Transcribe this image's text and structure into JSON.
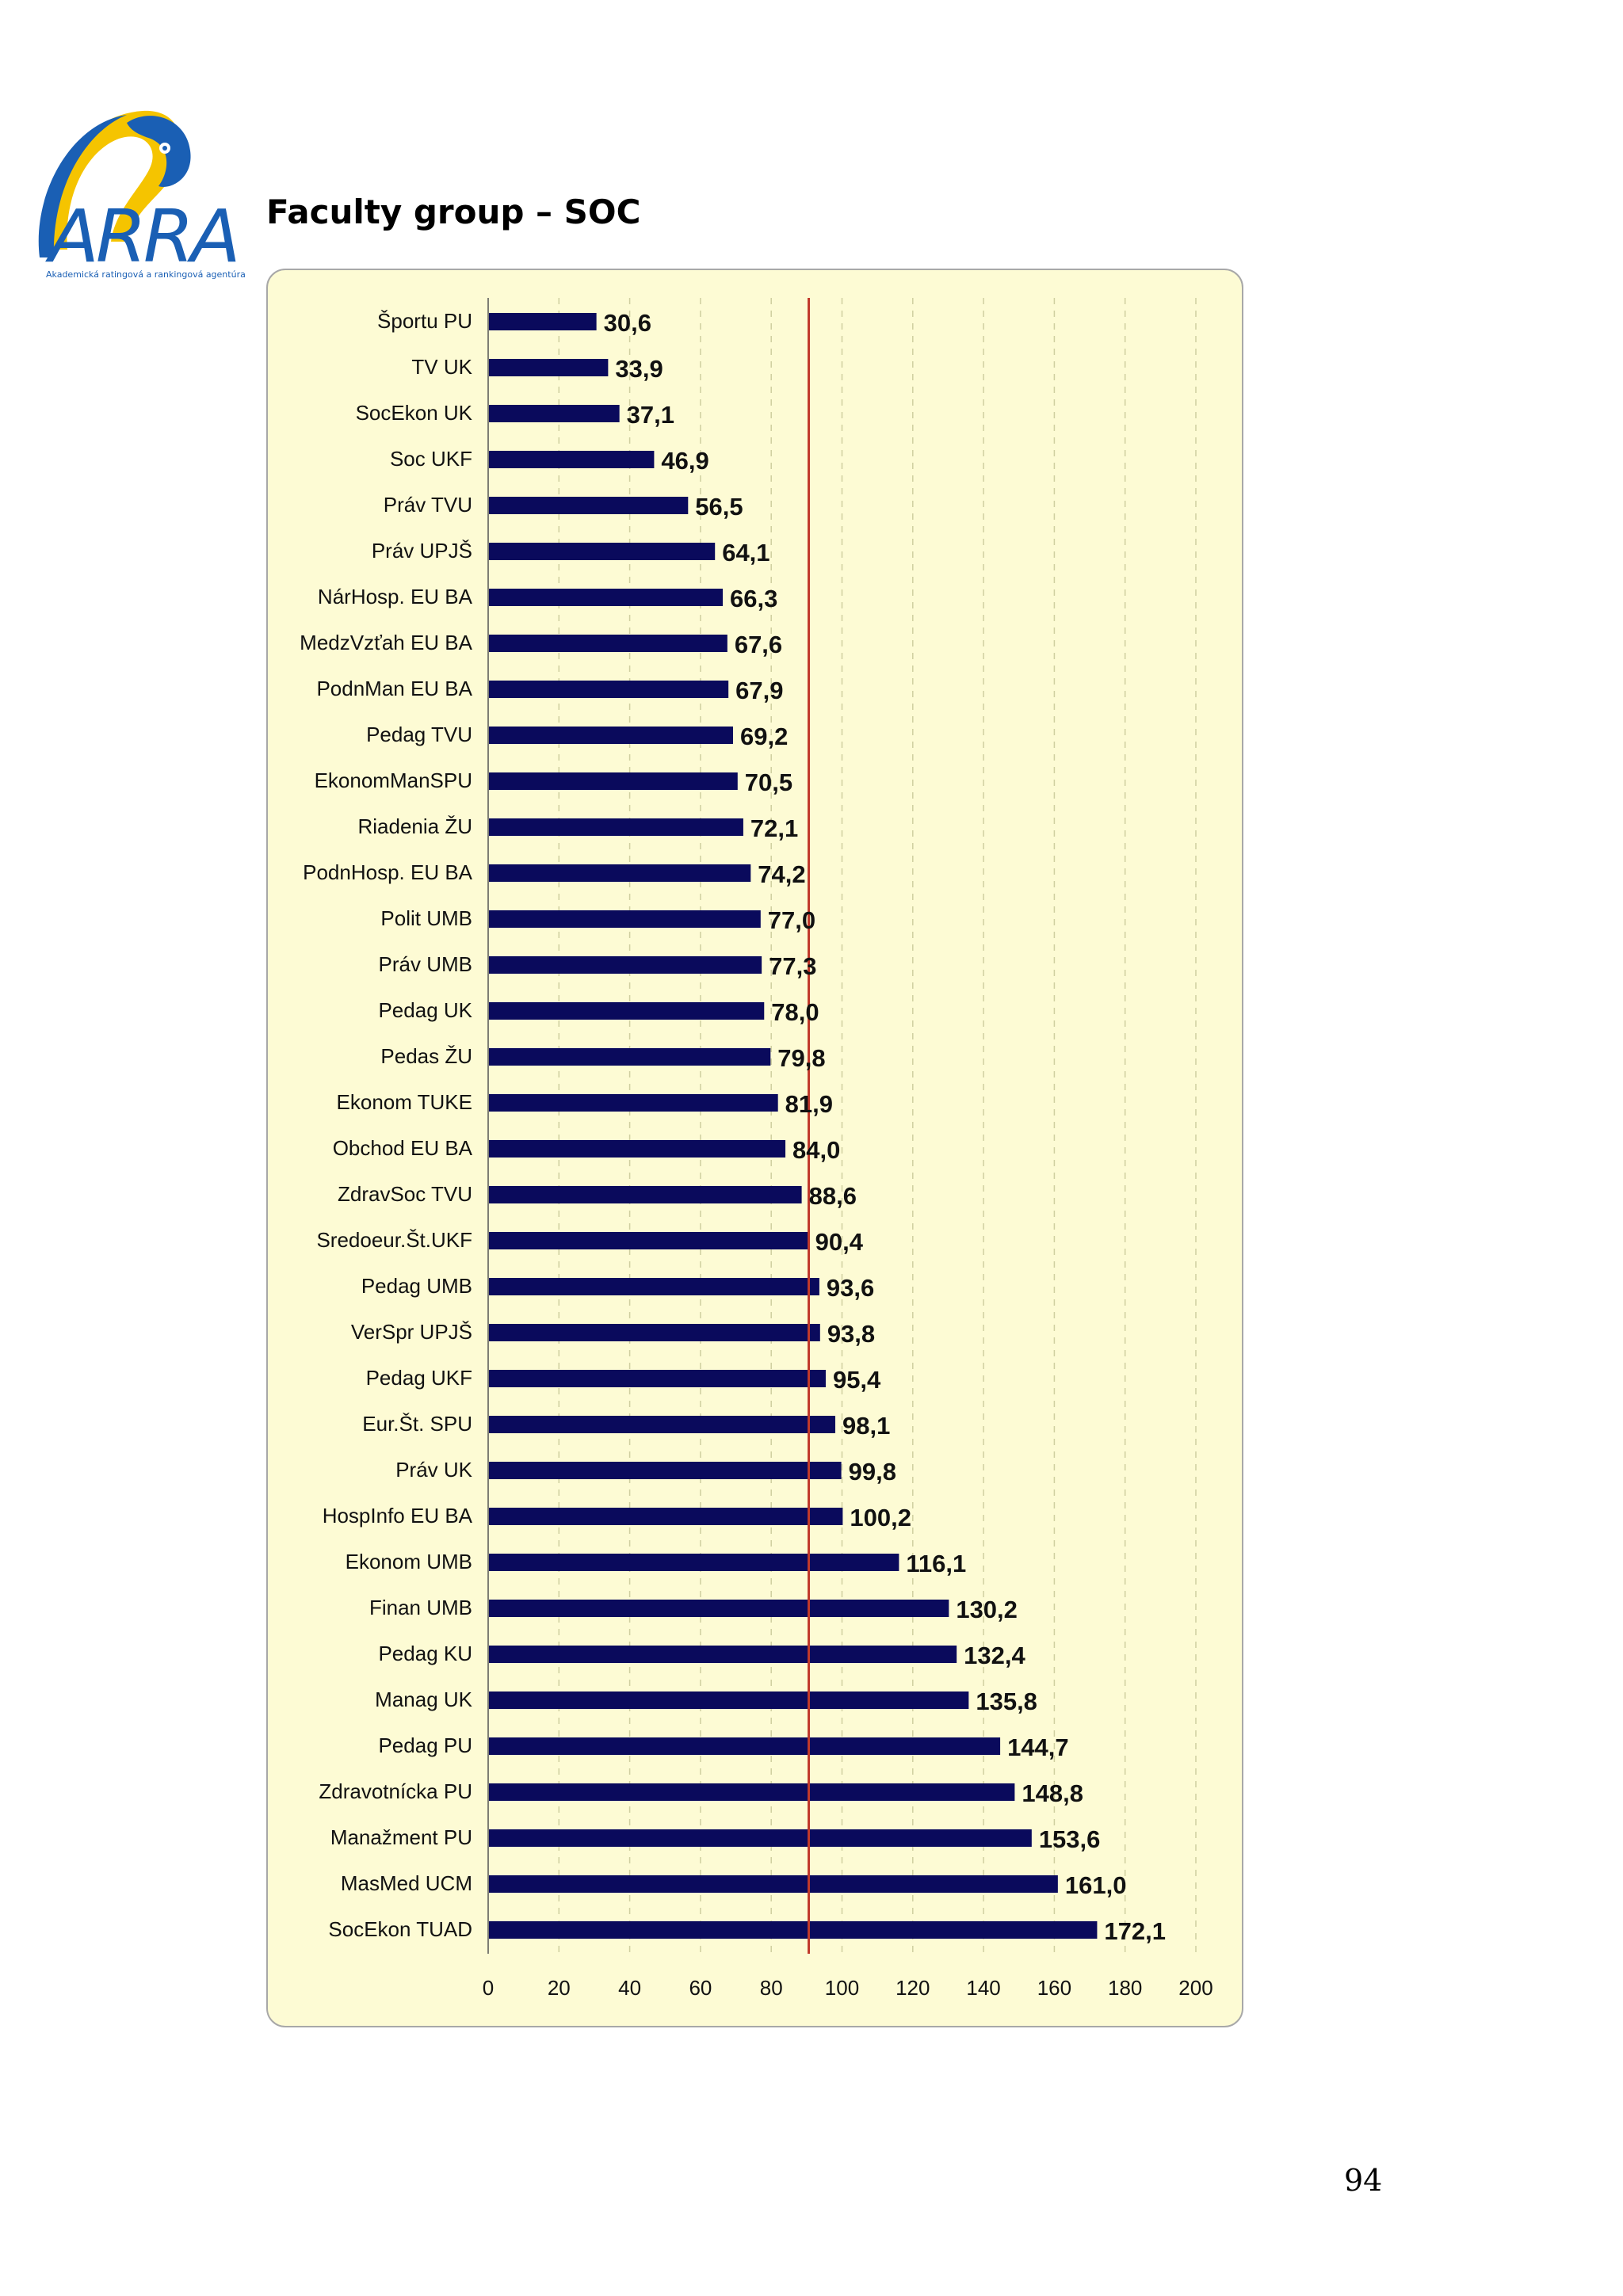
{
  "header": {
    "heading": "Faculty group – SOC",
    "logo_text": "ARRA",
    "logo_caption": "Akademická ratingová a rankingová agentúra",
    "logo_icon": "parrot-icon"
  },
  "colors": {
    "bar": "#0a0a5c",
    "reference_line": "#c0392b",
    "chart_background": "#fdfbd4",
    "logo_blue": "#1a5fb4",
    "logo_yellow": "#f5c400"
  },
  "chart_data": {
    "type": "bar",
    "orientation": "horizontal",
    "categories": [
      "Športu PU",
      "TV  UK",
      "SocEkon UK",
      "Soc UKF",
      "Práv TVU",
      "Práv UPJŠ",
      "NárHosp. EU BA",
      "MedzVzťah EU BA",
      "PodnMan EU BA",
      "Pedag TVU",
      "EkonomManSPU",
      "Riadenia  ŽU",
      "PodnHosp. EU BA",
      "Polit UMB",
      "Práv UMB",
      "Pedag UK",
      "Pedas ŽU",
      "Ekonom TUKE",
      "Obchod EU BA",
      "ZdravSoc TVU",
      "Sredoeur.Št.UKF",
      "Pedag UMB",
      "VerSpr UPJŠ",
      "Pedag UKF",
      "Eur.Št. SPU",
      "Práv UK",
      "HospInfo EU BA",
      "Ekonom UMB",
      "Finan UMB",
      "Pedag KU",
      "Manag UK",
      "Pedag PU",
      "Zdravotnícka PU",
      "Manažment PU",
      "MasMed UCM",
      "SocEkon TUAD"
    ],
    "values": [
      30.6,
      33.9,
      37.1,
      46.9,
      56.5,
      64.1,
      66.3,
      67.6,
      67.9,
      69.2,
      70.5,
      72.1,
      74.2,
      77.0,
      77.3,
      78.0,
      79.8,
      81.9,
      84.0,
      88.6,
      90.4,
      93.6,
      93.8,
      95.4,
      98.1,
      99.8,
      100.2,
      116.1,
      130.2,
      132.4,
      135.8,
      144.7,
      148.8,
      153.6,
      161.0,
      172.1
    ],
    "value_labels": [
      "30,6",
      "33,9",
      "37,1",
      "46,9",
      "56,5",
      "64,1",
      "66,3",
      "67,6",
      "67,9",
      "69,2",
      "70,5",
      "72,1",
      "74,2",
      "77,0",
      "77,3",
      "78,0",
      "79,8",
      "81,9",
      "84,0",
      "88,6",
      "90,4",
      "93,6",
      "93,8",
      "95,4",
      "98,1",
      "99,8",
      "100,2",
      "116,1",
      "130,2",
      "132,4",
      "135,8",
      "144,7",
      "148,8",
      "153,6",
      "161,0",
      "172,1"
    ],
    "xlim": [
      0,
      200
    ],
    "xticks": [
      0,
      20,
      40,
      60,
      80,
      100,
      120,
      140,
      160,
      180,
      200
    ],
    "grid": "vertical dashed",
    "reference_line_x": 90.6,
    "title": "",
    "xlabel": "",
    "ylabel": ""
  },
  "page": {
    "number": "94"
  }
}
